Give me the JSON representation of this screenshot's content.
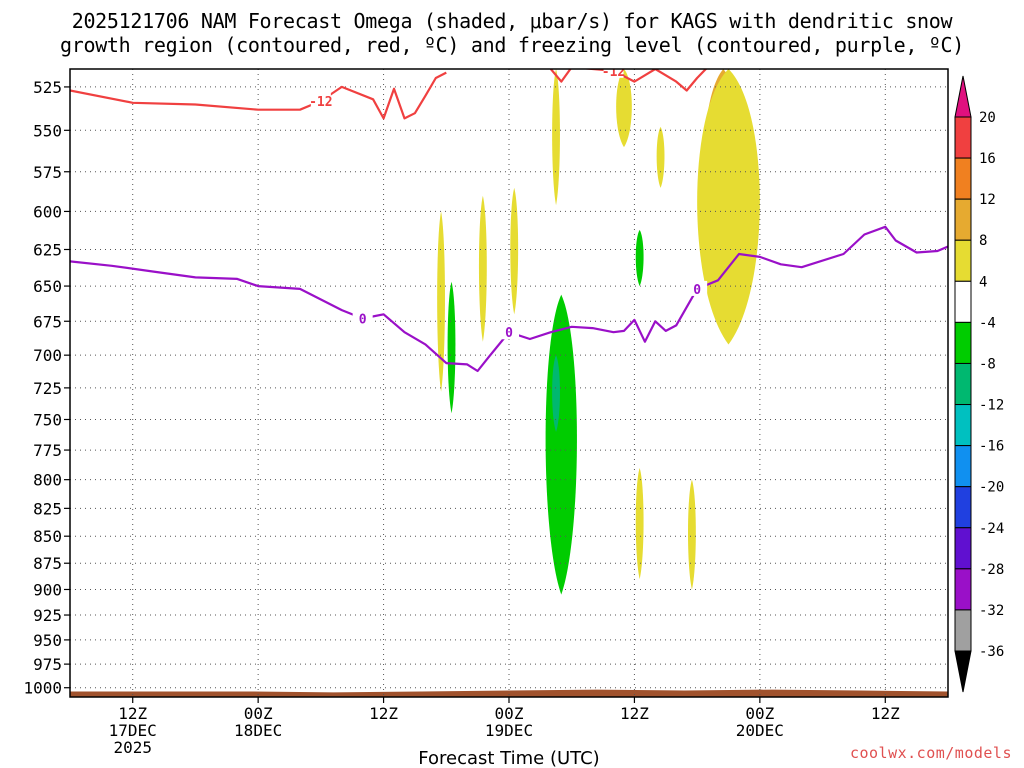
{
  "title": {
    "line1": "2025121706 NAM Forecast Omega (shaded, μbar/s) for KAGS with dendritic snow",
    "line2": "growth region (contoured, red, ºC) and freezing level (contoured, purple, ºC)"
  },
  "watermark": "coolwx.com/models",
  "colors": {
    "dgz_contour": "#f04040",
    "freezing_contour": "#9a10c8",
    "terrain": "#a0522d",
    "grid": "#555555"
  },
  "chart_data": {
    "type": "heatmap",
    "xlabel": "Forecast Time (UTC)",
    "ylabel": "",
    "x_range_hours": [
      0,
      84
    ],
    "y_range_mb": [
      1010,
      515
    ],
    "y_scale": "log-pressure",
    "y_ticks": [
      525,
      550,
      575,
      600,
      625,
      650,
      675,
      700,
      725,
      750,
      775,
      800,
      825,
      850,
      875,
      900,
      925,
      950,
      975,
      1000
    ],
    "x_ticks": [
      {
        "hour": 6,
        "lines": [
          "12Z",
          "17DEC",
          "2025"
        ]
      },
      {
        "hour": 18,
        "lines": [
          "00Z",
          "18DEC"
        ]
      },
      {
        "hour": 30,
        "lines": [
          "12Z"
        ]
      },
      {
        "hour": 42,
        "lines": [
          "00Z",
          "19DEC"
        ]
      },
      {
        "hour": 54,
        "lines": [
          "12Z"
        ]
      },
      {
        "hour": 66,
        "lines": [
          "00Z",
          "20DEC"
        ]
      },
      {
        "hour": 78,
        "lines": [
          "12Z"
        ]
      }
    ],
    "grid": true,
    "colorbar": {
      "levels": [
        {
          "value": 20,
          "color": "#e0107f"
        },
        {
          "value": 16,
          "color": "#f04040"
        },
        {
          "value": 12,
          "color": "#f08020"
        },
        {
          "value": 8,
          "color": "#e6aa30"
        },
        {
          "value": 4,
          "color": "#e6dc32"
        },
        {
          "value": -4,
          "color": "#ffffff"
        },
        {
          "value": -8,
          "color": "#00cc00"
        },
        {
          "value": -12,
          "color": "#00b870"
        },
        {
          "value": -16,
          "color": "#00c0c0"
        },
        {
          "value": -20,
          "color": "#1090f0"
        },
        {
          "value": -24,
          "color": "#2040e0"
        },
        {
          "value": -28,
          "color": "#6010d0"
        },
        {
          "value": -32,
          "color": "#9a10c8"
        },
        {
          "value": -36,
          "color": "#a0a0a0"
        }
      ],
      "below_color": "#000000"
    },
    "contours": [
      {
        "name": "-12",
        "series": "dendritic snow growth region",
        "color": "#f04040",
        "points": [
          [
            0,
            527
          ],
          [
            6,
            534
          ],
          [
            12,
            535
          ],
          [
            18,
            538
          ],
          [
            22,
            538
          ],
          [
            24,
            533
          ],
          [
            26,
            525
          ],
          [
            29,
            532
          ],
          [
            30,
            543
          ],
          [
            31,
            526
          ],
          [
            32,
            543
          ],
          [
            33,
            540
          ],
          [
            34,
            530
          ],
          [
            35,
            520
          ],
          [
            36,
            517
          ]
        ]
      },
      {
        "name": "-12",
        "series": "dendritic snow growth region",
        "color": "#f04040",
        "points": [
          [
            46,
            515
          ],
          [
            47,
            522
          ],
          [
            48,
            514
          ],
          [
            52,
            516
          ],
          [
            54,
            522
          ],
          [
            56,
            515
          ],
          [
            58,
            522
          ],
          [
            59,
            527
          ],
          [
            60,
            520
          ],
          [
            61,
            514
          ]
        ]
      },
      {
        "name": "0",
        "series": "freezing level",
        "color": "#9a10c8",
        "points": [
          [
            0,
            633
          ],
          [
            4,
            636
          ],
          [
            8,
            640
          ],
          [
            12,
            644
          ],
          [
            16,
            645
          ],
          [
            18,
            650
          ],
          [
            22,
            652
          ],
          [
            26,
            667
          ],
          [
            28,
            673
          ],
          [
            30,
            670
          ],
          [
            32,
            683
          ],
          [
            34,
            692
          ],
          [
            36,
            706
          ],
          [
            38,
            707
          ],
          [
            39,
            712
          ],
          [
            40,
            702
          ],
          [
            42,
            683
          ],
          [
            44,
            688
          ],
          [
            46,
            683
          ],
          [
            48,
            679
          ],
          [
            50,
            680
          ],
          [
            52,
            683
          ],
          [
            53,
            682
          ],
          [
            54,
            674
          ],
          [
            55,
            690
          ],
          [
            56,
            675
          ],
          [
            57,
            682
          ],
          [
            58,
            678
          ],
          [
            60,
            652
          ],
          [
            62,
            646
          ],
          [
            64,
            628
          ],
          [
            66,
            630
          ],
          [
            68,
            635
          ],
          [
            70,
            637
          ],
          [
            74,
            628
          ],
          [
            76,
            615
          ],
          [
            78,
            610
          ],
          [
            79,
            619
          ],
          [
            81,
            627
          ],
          [
            83,
            626
          ],
          [
            84,
            623
          ]
        ]
      }
    ],
    "omega_regions": [
      {
        "value": 8,
        "color": "#e6aa30",
        "hour_range": [
          60,
          65
        ],
        "p_range": [
          515,
          640
        ]
      },
      {
        "value": 4,
        "color": "#e6dc32",
        "hour_range": [
          59,
          67
        ],
        "p_range": [
          515,
          692
        ]
      },
      {
        "value": 4,
        "color": "#e6dc32",
        "hour_range": [
          52,
          54
        ],
        "p_range": [
          515,
          560
        ]
      },
      {
        "value": 4,
        "color": "#e6dc32",
        "hour_range": [
          46,
          47
        ],
        "p_range": [
          515,
          596
        ]
      },
      {
        "value": 4,
        "color": "#e6dc32",
        "hour_range": [
          42,
          43
        ],
        "p_range": [
          585,
          670
        ]
      },
      {
        "value": 4,
        "color": "#e6dc32",
        "hour_range": [
          39,
          40
        ],
        "p_range": [
          590,
          690
        ]
      },
      {
        "value": 4,
        "color": "#e6dc32",
        "hour_range": [
          35,
          36
        ],
        "p_range": [
          600,
          728
        ]
      },
      {
        "value": 4,
        "color": "#e6dc32",
        "hour_range": [
          56,
          57
        ],
        "p_range": [
          548,
          585
        ]
      },
      {
        "value": 4,
        "color": "#e6dc32",
        "hour_range": [
          59,
          60
        ],
        "p_range": [
          800,
          900
        ]
      },
      {
        "value": 4,
        "color": "#e6dc32",
        "hour_range": [
          54,
          55
        ],
        "p_range": [
          790,
          890
        ]
      },
      {
        "value": -8,
        "color": "#00cc00",
        "hour_range": [
          36,
          37
        ],
        "p_range": [
          647,
          745
        ]
      },
      {
        "value": -8,
        "color": "#00cc00",
        "hour_range": [
          54,
          55
        ],
        "p_range": [
          612,
          650
        ]
      },
      {
        "value": -8,
        "color": "#00cc00",
        "hour_range": [
          45,
          49
        ],
        "p_range": [
          656,
          905
        ]
      },
      {
        "value": -12,
        "color": "#00b870",
        "hour_range": [
          46,
          47
        ],
        "p_range": [
          700,
          760
        ]
      }
    ],
    "terrain": {
      "color": "#a0522d",
      "surface_mb": [
        1004,
        1004,
        1004,
        1005,
        1004,
        1003,
        1002,
        1003,
        1002,
        1003,
        1004
      ]
    }
  }
}
